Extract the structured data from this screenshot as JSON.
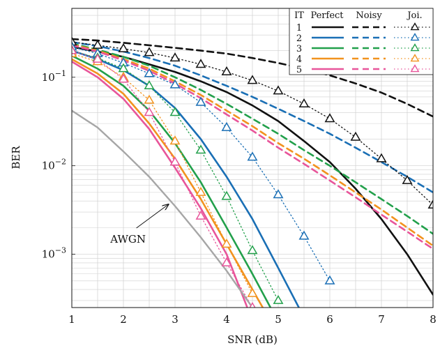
{
  "chart_data": {
    "type": "line",
    "xlabel": "SNR (dB)",
    "ylabel": "BER",
    "xlim": [
      1,
      8
    ],
    "ylim": [
      0.00025,
      0.6
    ],
    "yscale": "log",
    "grid": true,
    "x_ticks": [
      1,
      2,
      3,
      4,
      5,
      6,
      7,
      8
    ],
    "y_ticks": [
      {
        "value": 0.1,
        "base": "10",
        "exp": "−1"
      },
      {
        "value": 0.01,
        "base": "10",
        "exp": "−2"
      },
      {
        "value": 0.001,
        "base": "10",
        "exp": "−3"
      }
    ],
    "legend": {
      "position": "top-right",
      "headers": [
        "IT",
        "Perfect",
        "Noisy",
        "Joi."
      ],
      "rows": [
        "1",
        "2",
        "3",
        "4",
        "5"
      ]
    },
    "iteration_colors": [
      "#111111",
      "#1a6fb5",
      "#22a04b",
      "#f2921e",
      "#e8559a"
    ],
    "series": [
      {
        "it": 1,
        "kind": "perfect",
        "x": [
          1,
          1.5,
          2,
          2.5,
          3,
          3.5,
          4,
          4.5,
          5,
          5.5,
          6,
          6.5,
          7,
          7.5,
          8
        ],
        "y": [
          0.22,
          0.195,
          0.17,
          0.14,
          0.115,
          0.09,
          0.068,
          0.048,
          0.032,
          0.019,
          0.011,
          0.0055,
          0.0025,
          0.001,
          0.00035
        ]
      },
      {
        "it": 2,
        "kind": "perfect",
        "x": [
          1,
          1.5,
          2,
          2.5,
          3,
          3.5,
          4,
          4.5,
          5,
          5.4
        ],
        "y": [
          0.2,
          0.16,
          0.12,
          0.08,
          0.045,
          0.02,
          0.0075,
          0.0025,
          0.0007,
          0.00025
        ]
      },
      {
        "it": 3,
        "kind": "perfect",
        "x": [
          1,
          1.5,
          2,
          2.5,
          3,
          3.5,
          4,
          4.5,
          4.85
        ],
        "y": [
          0.175,
          0.125,
          0.08,
          0.042,
          0.018,
          0.0065,
          0.002,
          0.0006,
          0.00025
        ]
      },
      {
        "it": 4,
        "kind": "perfect",
        "x": [
          1,
          1.5,
          2,
          2.5,
          3,
          3.5,
          4,
          4.5,
          4.7
        ],
        "y": [
          0.16,
          0.11,
          0.065,
          0.03,
          0.012,
          0.0042,
          0.0013,
          0.0004,
          0.00025
        ]
      },
      {
        "it": 5,
        "kind": "perfect",
        "x": [
          1,
          1.5,
          2,
          2.5,
          3,
          3.5,
          4,
          4.4
        ],
        "y": [
          0.15,
          0.1,
          0.057,
          0.026,
          0.0095,
          0.0033,
          0.001,
          0.00025
        ]
      },
      {
        "it": 1,
        "kind": "noisy",
        "x": [
          1,
          1.5,
          2,
          2.5,
          3,
          3.5,
          4,
          4.5,
          5,
          5.5,
          6,
          6.5,
          7,
          7.5,
          8
        ],
        "y": [
          0.27,
          0.26,
          0.245,
          0.23,
          0.215,
          0.2,
          0.185,
          0.165,
          0.145,
          0.125,
          0.105,
          0.085,
          0.067,
          0.05,
          0.036
        ]
      },
      {
        "it": 2,
        "kind": "noisy",
        "x": [
          1,
          1.5,
          2,
          2.5,
          3,
          3.5,
          4,
          4.5,
          5,
          5.5,
          6,
          6.5,
          7,
          7.5,
          8
        ],
        "y": [
          0.25,
          0.225,
          0.195,
          0.165,
          0.135,
          0.105,
          0.08,
          0.06,
          0.044,
          0.032,
          0.023,
          0.016,
          0.011,
          0.0075,
          0.005
        ]
      },
      {
        "it": 3,
        "kind": "noisy",
        "x": [
          1,
          1.5,
          2,
          2.5,
          3,
          3.5,
          4,
          4.5,
          5,
          5.5,
          6,
          6.5,
          7,
          7.5,
          8
        ],
        "y": [
          0.24,
          0.205,
          0.17,
          0.135,
          0.1,
          0.072,
          0.05,
          0.034,
          0.023,
          0.015,
          0.01,
          0.0065,
          0.0042,
          0.0027,
          0.0017
        ]
      },
      {
        "it": 4,
        "kind": "noisy",
        "x": [
          1,
          1.5,
          2,
          2.5,
          3,
          3.5,
          4,
          4.5,
          5,
          5.5,
          6,
          6.5,
          7,
          7.5,
          8
        ],
        "y": [
          0.235,
          0.2,
          0.16,
          0.125,
          0.09,
          0.063,
          0.042,
          0.028,
          0.018,
          0.012,
          0.0078,
          0.005,
          0.0032,
          0.002,
          0.00125
        ]
      },
      {
        "it": 5,
        "kind": "noisy",
        "x": [
          1,
          1.5,
          2,
          2.5,
          3,
          3.5,
          4,
          4.5,
          5,
          5.5,
          6,
          6.5,
          7,
          7.5,
          8
        ],
        "y": [
          0.23,
          0.195,
          0.155,
          0.118,
          0.085,
          0.058,
          0.038,
          0.025,
          0.016,
          0.0105,
          0.0068,
          0.0044,
          0.0028,
          0.0018,
          0.00115
        ]
      },
      {
        "it": 1,
        "kind": "joint",
        "x": [
          1,
          1.5,
          2,
          2.5,
          3,
          3.5,
          4,
          4.5,
          5,
          5.5,
          6,
          6.5,
          7,
          7.5,
          8
        ],
        "y": [
          0.25,
          0.23,
          0.21,
          0.19,
          0.165,
          0.14,
          0.115,
          0.092,
          0.07,
          0.05,
          0.034,
          0.021,
          0.012,
          0.0068,
          0.0036
        ]
      },
      {
        "it": 2,
        "kind": "joint",
        "x": [
          1,
          1.5,
          2,
          2.5,
          3,
          3.5,
          4,
          4.5,
          5,
          5.5,
          6
        ],
        "y": [
          0.22,
          0.185,
          0.145,
          0.11,
          0.082,
          0.052,
          0.027,
          0.0125,
          0.0047,
          0.0016,
          0.0005
        ]
      },
      {
        "it": 3,
        "kind": "joint",
        "x": [
          1,
          1.5,
          2,
          2.5,
          3,
          3.5,
          4,
          4.5,
          5
        ],
        "y": [
          0.2,
          0.165,
          0.125,
          0.08,
          0.04,
          0.015,
          0.0045,
          0.0011,
          0.0003
        ]
      },
      {
        "it": 4,
        "kind": "joint",
        "x": [
          1,
          1.5,
          2,
          2.5,
          3,
          3.5,
          4,
          4.5
        ],
        "y": [
          0.185,
          0.15,
          0.1,
          0.055,
          0.019,
          0.005,
          0.0013,
          0.00036
        ]
      },
      {
        "it": 5,
        "kind": "joint",
        "x": [
          1,
          1.5,
          2,
          2.5,
          3,
          3.5,
          4,
          4.5
        ],
        "y": [
          0.2,
          0.16,
          0.095,
          0.04,
          0.011,
          0.0027,
          0.0008,
          0.00025
        ]
      },
      {
        "it": 0,
        "kind": "awgn",
        "color": "#a6a6a6",
        "x": [
          1,
          1.5,
          2,
          2.5,
          3,
          3.5,
          4,
          4.5
        ],
        "y": [
          0.042,
          0.027,
          0.0145,
          0.0075,
          0.0035,
          0.00155,
          0.00065,
          0.00025
        ]
      }
    ],
    "annotations": [
      {
        "text": "AWGN",
        "target": {
          "x": 2.9,
          "y": 0.0038
        }
      }
    ]
  }
}
